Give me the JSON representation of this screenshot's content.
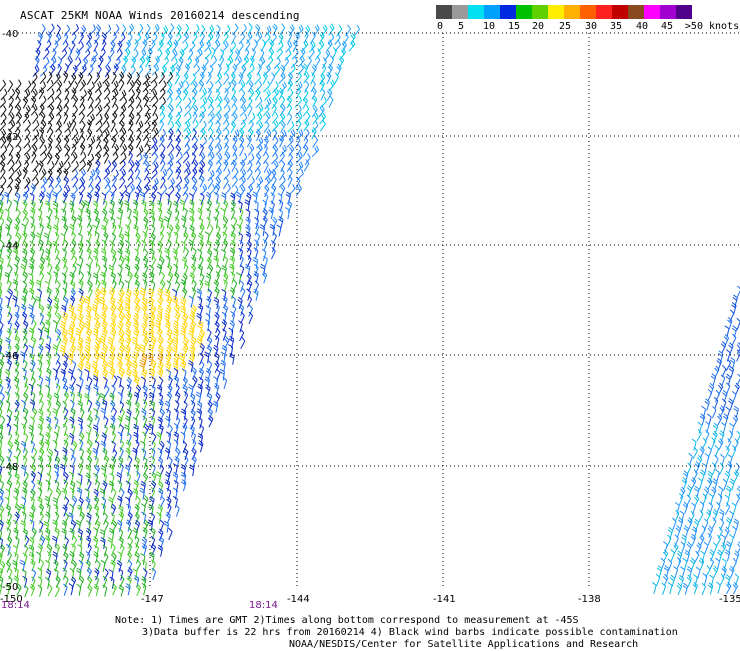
{
  "title": "ASCAT 25KM NOAA Winds 20160214 descending",
  "legend": {
    "labels": [
      "0",
      "5",
      "10",
      "15",
      "20",
      "25",
      "30",
      "35",
      "40",
      "45",
      ">50 knots"
    ],
    "colors": [
      "#4a4a4a",
      "#9a9a9a",
      "#00e0f0",
      "#00a0ff",
      "#0028e0",
      "#00c000",
      "#60d000",
      "#ffee00",
      "#ffb000",
      "#ff6000",
      "#ff2020",
      "#c00000",
      "#8a4a20",
      "#ff00ff",
      "#a000d0",
      "#50008a"
    ]
  },
  "map": {
    "lat_labels": [
      "-40",
      "-42",
      "-44",
      "-46",
      "-48",
      "-50"
    ],
    "lon_labels": [
      "-150",
      "-147",
      "-144",
      "-141",
      "-138",
      "-135"
    ],
    "time_labels": [
      "18:14",
      "18:14"
    ]
  },
  "notes": {
    "line1": "Note: 1) Times are GMT 2)Times along bottom correspond to measurement at -45S",
    "line2": "3)Data buffer is 22 hrs from 20160214 4) Black wind barbs indicate possible contamination",
    "line3": "NOAA/NESDIS/Center for Satellite Applications and Research"
  }
}
